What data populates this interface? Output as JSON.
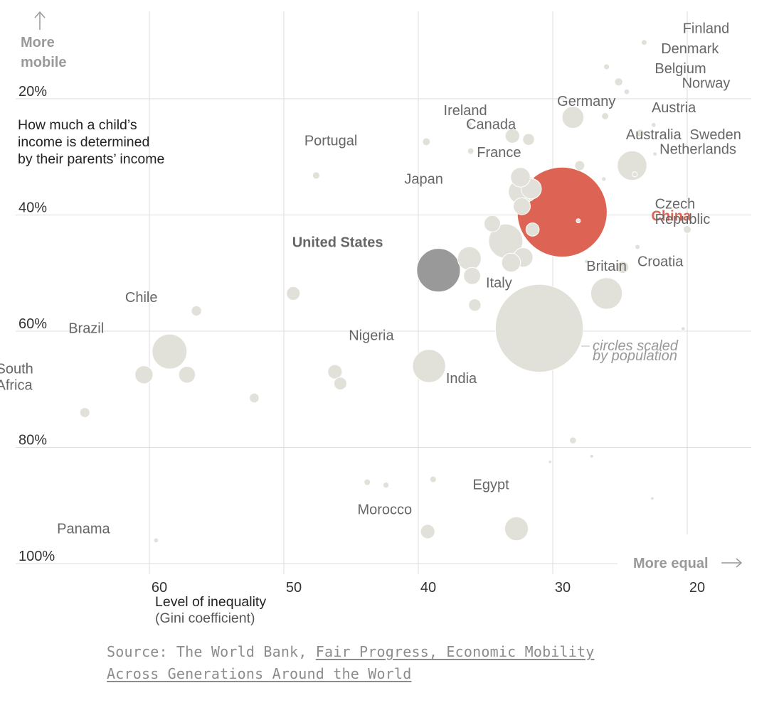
{
  "chart_data": {
    "type": "scatter",
    "x_axis": {
      "label_line1": "Level of inequality",
      "label_line2": "(Gini coefficient)",
      "range": [
        68,
        15
      ],
      "ticks": [
        60,
        50,
        40,
        30,
        20
      ],
      "tick_labels": [
        "60",
        "50",
        "40",
        "30",
        "20"
      ],
      "end_label": "More equal"
    },
    "y_axis": {
      "label_line1": "More",
      "label_line2": "mobile",
      "description": [
        "How much a child’s",
        "income is determined",
        "by their parents’ income"
      ],
      "range": [
        5,
        100
      ],
      "ticks": [
        20,
        40,
        60,
        80,
        100
      ],
      "tick_labels": [
        "20%",
        "40%",
        "60%",
        "80%",
        "100%"
      ]
    },
    "size_note": [
      "circles scaled",
      "by population"
    ],
    "colors": {
      "default": "#e2e1d9",
      "us": "#999999",
      "china": "#dd6454",
      "grid": "#dddddd",
      "label": "#666666",
      "axis_text": "#333333",
      "muted": "#999999"
    },
    "points": [
      {
        "name": "Finland",
        "x": 23.2,
        "y": 10.3,
        "pop": 5.5
      },
      {
        "name": "Denmark",
        "x": 26.0,
        "y": 14.5,
        "pop": 5.7
      },
      {
        "name": "Belgium",
        "x": 25.1,
        "y": 17.1,
        "pop": 11.3
      },
      {
        "name": "Norway",
        "x": 24.5,
        "y": 18.8,
        "pop": 5.2
      },
      {
        "name": "Germany",
        "x": 28.5,
        "y": 23.2,
        "pop": 82
      },
      {
        "name": "Austria",
        "x": 26.1,
        "y": 23.0,
        "pop": 8.7
      },
      {
        "name": "Ireland",
        "x": 36.2,
        "y": 24.4,
        "pop": 4.7
      },
      {
        "name": "Canada",
        "x": 33.0,
        "y": 26.4,
        "pop": 36
      },
      {
        "name": "Australia",
        "x": 31.8,
        "y": 27.0,
        "pop": 24
      },
      {
        "name": "Sweden",
        "x": 23.5,
        "y": 25.9,
        "pop": 10
      },
      {
        "name": "Portugal",
        "x": 39.4,
        "y": 27.4,
        "pop": 10.3
      },
      {
        "name": "France",
        "x": 32.4,
        "y": 33.5,
        "pop": 66
      },
      {
        "name": "Netherlands",
        "x": 28.0,
        "y": 31.5,
        "pop": 17
      },
      {
        "name": "Japan",
        "x": 32.1,
        "y": 35.5,
        "pop": 127
      },
      {
        "name": "China",
        "x": 29.3,
        "y": 39.5,
        "pop": 1380,
        "highlight": "china"
      },
      {
        "name": "Czech Republic",
        "x": 20.0,
        "y": 42.5,
        "pop": 10.6
      },
      {
        "name": "United States",
        "x": 38.5,
        "y": 49.5,
        "pop": 323,
        "highlight": "us"
      },
      {
        "name": "Britain",
        "x": 32.2,
        "y": 47.3,
        "pop": 65
      },
      {
        "name": "Croatia",
        "x": 23.7,
        "y": 45.5,
        "pop": 4.2
      },
      {
        "name": "Italy",
        "x": 33.1,
        "y": 48.2,
        "pop": 61
      },
      {
        "name": "Chile",
        "x": 56.5,
        "y": 56.5,
        "pop": 18
      },
      {
        "name": "Brazil",
        "x": 58.5,
        "y": 63.5,
        "pop": 207
      },
      {
        "name": "Nigeria",
        "x": 39.2,
        "y": 66.0,
        "pop": 186
      },
      {
        "name": "India",
        "x": 31.0,
        "y": 59.5,
        "pop": 1320
      },
      {
        "name": "South Africa",
        "x": 60.4,
        "y": 67.5,
        "pop": 56
      },
      {
        "name": "Morocco",
        "x": 39.3,
        "y": 94.5,
        "pop": 35
      },
      {
        "name": "Egypt",
        "x": 32.7,
        "y": 94.0,
        "pop": 96
      },
      {
        "name": "Panama",
        "x": 59.5,
        "y": 96.0,
        "pop": 4.0
      },
      {
        "x": 64.8,
        "y": 74.0,
        "pop": 17
      },
      {
        "x": 47.6,
        "y": 33.2,
        "pop": 9
      },
      {
        "x": 36.1,
        "y": 29.0,
        "pop": 7
      },
      {
        "x": 49.3,
        "y": 53.5,
        "pop": 32
      },
      {
        "x": 46.2,
        "y": 67.0,
        "pop": 35
      },
      {
        "x": 45.8,
        "y": 69.0,
        "pop": 28
      },
      {
        "x": 52.2,
        "y": 71.5,
        "pop": 16
      },
      {
        "x": 57.2,
        "y": 67.5,
        "pop": 48
      },
      {
        "x": 34.5,
        "y": 41.5,
        "pop": 46
      },
      {
        "x": 33.5,
        "y": 44.5,
        "pop": 200
      },
      {
        "x": 36.2,
        "y": 47.5,
        "pop": 95
      },
      {
        "x": 36.0,
        "y": 50.5,
        "pop": 50
      },
      {
        "x": 35.8,
        "y": 55.5,
        "pop": 26
      },
      {
        "x": 26.0,
        "y": 53.5,
        "pop": 170
      },
      {
        "x": 24.8,
        "y": 49.0,
        "pop": 25
      },
      {
        "x": 32.3,
        "y": 38.5,
        "pop": 50
      },
      {
        "x": 32.4,
        "y": 36.0,
        "pop": 100
      },
      {
        "x": 31.6,
        "y": 35.5,
        "pop": 70
      },
      {
        "x": 31.5,
        "y": 42.5,
        "pop": 30
      },
      {
        "x": 23.9,
        "y": 33.0,
        "pop": 4.5
      },
      {
        "x": 24.1,
        "y": 31.5,
        "pop": 150
      },
      {
        "x": 26.2,
        "y": 33.8,
        "pop": 3.5
      },
      {
        "x": 20.3,
        "y": 59.6,
        "pop": 3
      },
      {
        "x": 28.5,
        "y": 78.8,
        "pop": 8
      },
      {
        "x": 27.1,
        "y": 81.5,
        "pop": 2.5
      },
      {
        "x": 30.2,
        "y": 82.5,
        "pop": 2
      },
      {
        "x": 22.6,
        "y": 88.8,
        "pop": 2
      },
      {
        "x": 43.8,
        "y": 86.0,
        "pop": 7
      },
      {
        "x": 42.4,
        "y": 86.5,
        "pop": 6
      },
      {
        "x": 38.9,
        "y": 85.5,
        "pop": 7
      },
      {
        "x": 28.1,
        "y": 41.0,
        "pop": 3
      },
      {
        "x": 27.5,
        "y": 48.0,
        "pop": 3
      },
      {
        "x": 22.5,
        "y": 24.5,
        "pop": 4
      },
      {
        "x": 22.4,
        "y": 29.5,
        "pop": 3
      }
    ],
    "labels": [
      {
        "text": "Finland",
        "x": 18.6,
        "y": 8.7
      },
      {
        "text": "Denmark",
        "x": 19.8,
        "y": 12.2
      },
      {
        "text": "Belgium",
        "x": 20.5,
        "y": 15.6
      },
      {
        "text": "Norway",
        "x": 18.6,
        "y": 18.1
      },
      {
        "text": "Germany",
        "x": 27.5,
        "y": 21.2
      },
      {
        "text": "Austria",
        "x": 21.0,
        "y": 22.3
      },
      {
        "text": "Ireland",
        "x": 36.5,
        "y": 22.8
      },
      {
        "text": "Canada",
        "x": 34.6,
        "y": 25.2
      },
      {
        "text": "Australia",
        "x": 22.5,
        "y": 27.0
      },
      {
        "text": "Sweden",
        "x": 17.9,
        "y": 27.0
      },
      {
        "text": "Portugal",
        "x": 46.5,
        "y": 28.0
      },
      {
        "text": "France",
        "x": 34.0,
        "y": 30.0
      },
      {
        "text": "Netherlands",
        "x": 19.2,
        "y": 29.5
      },
      {
        "text": "Japan",
        "x": 39.6,
        "y": 34.6
      },
      {
        "text": "China",
        "x": 21.2,
        "y": 41.0,
        "style": "china"
      },
      {
        "text": "Czech",
        "x": 22.4,
        "y": 38.9,
        "anchor": "start"
      },
      {
        "text": "Republic",
        "x": 22.4,
        "y": 41.5,
        "anchor": "start"
      },
      {
        "text": "United States",
        "x": 46.0,
        "y": 45.5,
        "style": "us"
      },
      {
        "text": "Britain",
        "x": 26.0,
        "y": 49.6
      },
      {
        "text": "Croatia",
        "x": 22.0,
        "y": 48.8
      },
      {
        "text": "Italy",
        "x": 34.0,
        "y": 52.5
      },
      {
        "text": "Chile",
        "x": 60.6,
        "y": 55.0
      },
      {
        "text": "Brazil",
        "x": 64.7,
        "y": 60.3
      },
      {
        "text": "Nigeria",
        "x": 43.5,
        "y": 61.5
      },
      {
        "text": "India",
        "x": 36.8,
        "y": 68.9
      },
      {
        "text": "South",
        "x": 71.4,
        "y": 67.3,
        "anchor": "start"
      },
      {
        "text": "Africa",
        "x": 71.4,
        "y": 70.1,
        "anchor": "start"
      },
      {
        "text": "Morocco",
        "x": 42.5,
        "y": 91.5
      },
      {
        "text": "Egypt",
        "x": 34.6,
        "y": 87.2
      },
      {
        "text": "Panama",
        "x": 64.9,
        "y": 94.8
      }
    ]
  },
  "source": {
    "prefix": "Source: The World Bank, ",
    "link_text": "Fair Progress, Economic Mobility Across Generations Around the World"
  }
}
